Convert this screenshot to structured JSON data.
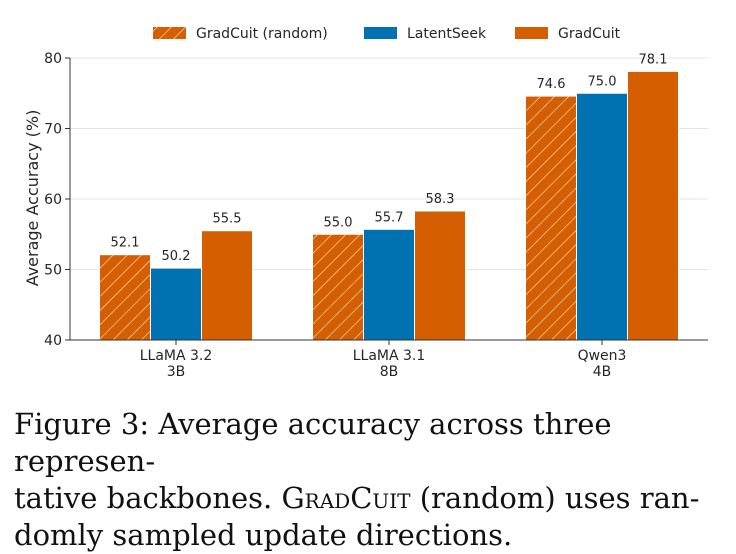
{
  "chart_data": {
    "type": "bar",
    "title": "",
    "xlabel": "",
    "ylabel": "Average Accuracy (%)",
    "ylim": [
      40,
      80
    ],
    "yticks": [
      40,
      50,
      60,
      70,
      80
    ],
    "categories": [
      [
        "LLaMA 3.2",
        "3B"
      ],
      [
        "LLaMA 3.1",
        "8B"
      ],
      [
        "Qwen3",
        "4B"
      ]
    ],
    "series": [
      {
        "name": "GradCuit (random)",
        "values": [
          52.1,
          55.0,
          74.6
        ],
        "color": "#d55e00",
        "pattern": "hatch"
      },
      {
        "name": "LatentSeek",
        "values": [
          50.2,
          55.7,
          75.0
        ],
        "color": "#0072b2",
        "pattern": "solid"
      },
      {
        "name": "GradCuit",
        "values": [
          55.5,
          58.3,
          78.1
        ],
        "color": "#d55e00",
        "pattern": "solid"
      }
    ],
    "grid": true,
    "legend_position": "top-center"
  },
  "caption": {
    "prefix": "Figure 3: Average accuracy across three represen-",
    "line2_before": "tative backbones. ",
    "smallcaps_text": "GradCuit",
    "line2_after": " (random) uses ran-",
    "line3": "domly sampled update directions."
  }
}
